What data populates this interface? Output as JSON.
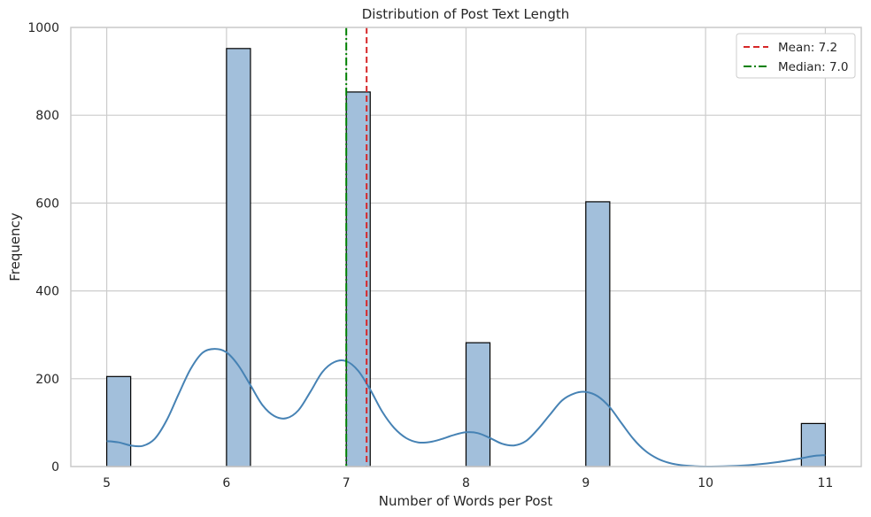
{
  "chart_data": {
    "type": "bar",
    "title": "Distribution of Post Text Length",
    "xlabel": "Number of Words per Post",
    "ylabel": "Frequency",
    "xlim": [
      4.7,
      11.3
    ],
    "ylim": [
      0,
      1000
    ],
    "xticks": [
      5,
      6,
      7,
      8,
      9,
      10,
      11
    ],
    "yticks": [
      0,
      200,
      400,
      600,
      800,
      1000
    ],
    "grid": true,
    "bin_width": 0.2,
    "bars": [
      {
        "x_start": 5.0,
        "x_end": 5.2,
        "value": 205
      },
      {
        "x_start": 6.0,
        "x_end": 6.2,
        "value": 952
      },
      {
        "x_start": 7.0,
        "x_end": 7.2,
        "value": 853
      },
      {
        "x_start": 8.0,
        "x_end": 8.2,
        "value": 282
      },
      {
        "x_start": 9.0,
        "x_end": 9.2,
        "value": 603
      },
      {
        "x_start": 10.8,
        "x_end": 11.0,
        "value": 98
      }
    ],
    "kde": {
      "x": [
        5.0,
        5.1,
        5.2,
        5.3,
        5.4,
        5.5,
        5.6,
        5.7,
        5.8,
        5.9,
        6.0,
        6.1,
        6.2,
        6.3,
        6.4,
        6.5,
        6.6,
        6.7,
        6.8,
        6.9,
        7.0,
        7.1,
        7.2,
        7.3,
        7.4,
        7.5,
        7.6,
        7.7,
        7.8,
        7.9,
        8.0,
        8.1,
        8.2,
        8.3,
        8.4,
        8.5,
        8.6,
        8.7,
        8.8,
        8.9,
        9.0,
        9.1,
        9.2,
        9.3,
        9.4,
        9.5,
        9.6,
        9.7,
        9.8,
        9.9,
        10.0,
        10.2,
        10.4,
        10.6,
        10.8,
        10.9,
        11.0
      ],
      "y": [
        58,
        55,
        48,
        47,
        63,
        105,
        165,
        222,
        259,
        268,
        260,
        230,
        185,
        140,
        115,
        110,
        128,
        170,
        215,
        238,
        240,
        218,
        175,
        125,
        88,
        65,
        55,
        56,
        63,
        72,
        78,
        76,
        65,
        52,
        48,
        58,
        85,
        118,
        150,
        166,
        170,
        160,
        135,
        98,
        62,
        35,
        18,
        8,
        3,
        1,
        0,
        1,
        4,
        10,
        19,
        24,
        26
      ]
    },
    "mean": {
      "label": "Mean: 7.2",
      "value": 7.17,
      "color": "#d62728"
    },
    "median": {
      "label": "Median: 7.0",
      "value": 7.0,
      "color": "#008000"
    },
    "legend_placement": "top-right",
    "bar_color": "#a2bfdb",
    "bar_edge_color": "#000000",
    "kde_color": "#4682b4"
  }
}
